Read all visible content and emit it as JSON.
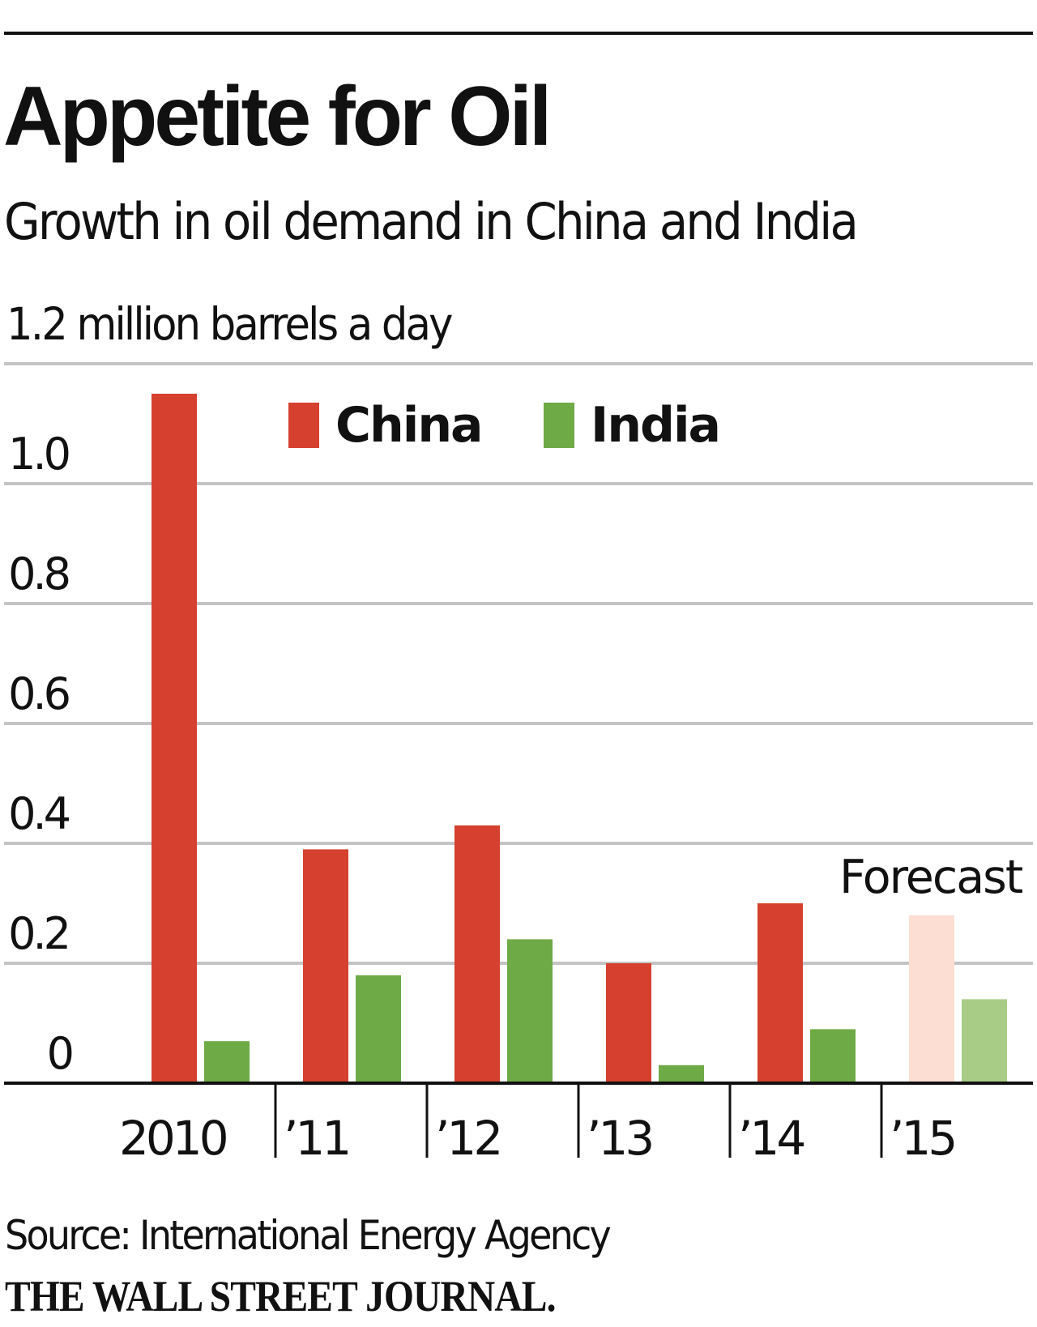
{
  "header": {
    "title": "Appetite for Oil",
    "subtitle": "Growth in oil demand in China and India"
  },
  "footer": {
    "source": "Source: International Energy Agency",
    "brand": "THE WALL STREET JOURNAL."
  },
  "colors": {
    "china": "#d5412e",
    "india": "#6eaa45",
    "china_forecast": "#fcdfd2",
    "india_forecast": "#a8cc86",
    "grid": "#c4c4c4",
    "axis": "#111111"
  },
  "chart_data": {
    "type": "bar",
    "title": "Appetite for Oil",
    "subtitle": "Growth in oil demand in China and India",
    "ylabel": "1.2 million barrels a day",
    "unit_label": "1.2 million barrels a day",
    "xlabel": "",
    "categories": [
      "2010",
      "’11",
      "’12",
      "’13",
      "’14",
      "’15"
    ],
    "series": [
      {
        "name": "China",
        "values": [
          1.15,
          0.39,
          0.43,
          0.2,
          0.3,
          0.28
        ]
      },
      {
        "name": "India",
        "values": [
          0.07,
          0.18,
          0.24,
          0.03,
          0.09,
          0.14
        ]
      }
    ],
    "forecast_categories": [
      "’15"
    ],
    "forecast_label": "Forecast",
    "ylim": [
      0,
      1.2
    ],
    "yticks": [
      0,
      0.2,
      0.4,
      0.6,
      0.8,
      1.0,
      1.2
    ],
    "ytick_labels": [
      "0",
      "0.2",
      "0.4",
      "0.6",
      "0.8",
      "1.0"
    ],
    "grid": true,
    "legend": {
      "entries": [
        "China",
        "India"
      ],
      "placement": "top-center"
    },
    "source": "Source: International Energy Agency"
  }
}
